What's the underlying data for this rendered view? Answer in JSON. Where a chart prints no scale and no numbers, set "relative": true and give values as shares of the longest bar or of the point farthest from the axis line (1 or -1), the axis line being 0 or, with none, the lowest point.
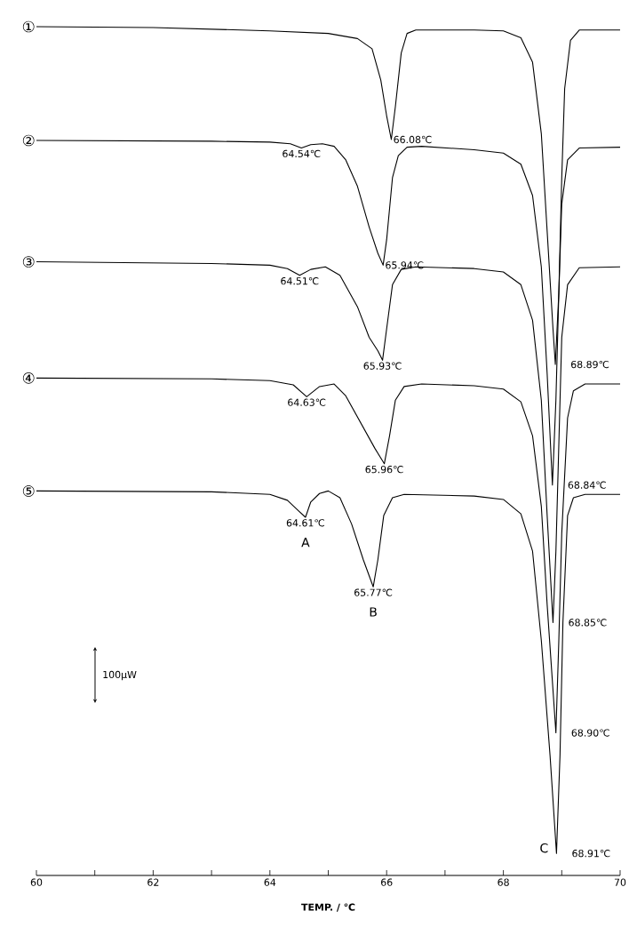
{
  "chart_data": {
    "type": "line",
    "relative": true,
    "xlabel": "TEMP.  / ℃",
    "xlim": [
      60,
      70
    ],
    "xticks": [
      60,
      {
        "value": 61,
        "label": null
      },
      62,
      {
        "value": 63,
        "label": null
      },
      64,
      {
        "value": 65,
        "label": null
      },
      66,
      {
        "value": 67,
        "label": null
      },
      68,
      {
        "value": 69,
        "label": null
      },
      70
    ],
    "series": [
      {
        "name": "①",
        "color": "#000000",
        "x": [
          60,
          62,
          64,
          65,
          65.5,
          65.75,
          65.9,
          66.0,
          66.08,
          66.15,
          66.25,
          66.35,
          66.5,
          67.5,
          68.0,
          68.3,
          68.5,
          68.65,
          68.75,
          68.85,
          68.89,
          68.95,
          69.0,
          69.05,
          69.15,
          69.3,
          70
        ],
        "values": [
          1.0,
          0.999,
          0.995,
          0.992,
          0.986,
          0.974,
          0.937,
          0.895,
          0.867,
          0.906,
          0.969,
          0.992,
          0.996,
          0.996,
          0.995,
          0.987,
          0.958,
          0.874,
          0.759,
          0.644,
          0.602,
          0.686,
          0.822,
          0.927,
          0.984,
          0.996,
          0.996
        ]
      },
      {
        "name": "②",
        "color": "#000000",
        "x": [
          60,
          63,
          64,
          64.35,
          64.54,
          64.7,
          64.9,
          65.1,
          65.3,
          65.5,
          65.7,
          65.85,
          65.94,
          66.0,
          66.1,
          66.2,
          66.35,
          66.6,
          67.5,
          68.0,
          68.3,
          68.5,
          68.65,
          68.75,
          68.84,
          68.9,
          68.95,
          69.0,
          69.1,
          69.3,
          70
        ],
        "values": [
          0.866,
          0.865,
          0.864,
          0.862,
          0.857,
          0.861,
          0.862,
          0.859,
          0.843,
          0.812,
          0.764,
          0.733,
          0.719,
          0.749,
          0.822,
          0.848,
          0.858,
          0.859,
          0.855,
          0.851,
          0.838,
          0.801,
          0.717,
          0.591,
          0.46,
          0.56,
          0.686,
          0.791,
          0.843,
          0.857,
          0.858
        ]
      },
      {
        "name": "③",
        "color": "#000000",
        "x": [
          60,
          63,
          64,
          64.3,
          64.51,
          64.7,
          64.95,
          65.2,
          65.5,
          65.7,
          65.85,
          65.93,
          66.0,
          66.1,
          66.25,
          66.5,
          67.5,
          68.0,
          68.3,
          68.5,
          68.65,
          68.75,
          68.85,
          68.9,
          68.95,
          69.0,
          69.1,
          69.3,
          70
        ],
        "values": [
          0.723,
          0.721,
          0.719,
          0.715,
          0.707,
          0.714,
          0.717,
          0.707,
          0.67,
          0.634,
          0.618,
          0.607,
          0.644,
          0.696,
          0.714,
          0.717,
          0.715,
          0.711,
          0.696,
          0.654,
          0.56,
          0.424,
          0.298,
          0.382,
          0.508,
          0.634,
          0.696,
          0.716,
          0.717
        ]
      },
      {
        "name": "④",
        "color": "#000000",
        "x": [
          60,
          63,
          64,
          64.4,
          64.63,
          64.85,
          65.1,
          65.3,
          65.55,
          65.8,
          65.96,
          66.05,
          66.15,
          66.3,
          66.6,
          67.5,
          68.0,
          68.3,
          68.5,
          68.65,
          68.75,
          68.9,
          68.95,
          69.0,
          69.1,
          69.2,
          69.4,
          70
        ],
        "values": [
          0.586,
          0.585,
          0.583,
          0.578,
          0.564,
          0.576,
          0.579,
          0.565,
          0.534,
          0.503,
          0.485,
          0.518,
          0.56,
          0.576,
          0.579,
          0.577,
          0.573,
          0.558,
          0.518,
          0.435,
          0.319,
          0.168,
          0.277,
          0.403,
          0.539,
          0.571,
          0.579,
          0.579
        ]
      },
      {
        "name": "⑤",
        "color": "#000000",
        "x": [
          60,
          63,
          64,
          64.3,
          64.5,
          64.61,
          64.7,
          64.85,
          65.0,
          65.2,
          65.4,
          65.6,
          65.77,
          65.85,
          65.95,
          66.1,
          66.3,
          67.5,
          68.0,
          68.3,
          68.5,
          68.65,
          68.8,
          68.91,
          68.97,
          69.02,
          69.1,
          69.2,
          69.4,
          70
        ],
        "values": [
          0.453,
          0.452,
          0.449,
          0.442,
          0.429,
          0.422,
          0.44,
          0.45,
          0.453,
          0.445,
          0.414,
          0.372,
          0.34,
          0.372,
          0.424,
          0.445,
          0.449,
          0.447,
          0.443,
          0.426,
          0.382,
          0.277,
          0.141,
          0.026,
          0.141,
          0.298,
          0.424,
          0.445,
          0.449,
          0.449
        ]
      }
    ],
    "annotations": [
      {
        "text": "66.08℃",
        "x": 66.08,
        "y": 0.867
      },
      {
        "text": "68.89℃",
        "x": 68.89,
        "y": 0.602
      },
      {
        "text": "64.54℃",
        "x": 64.54,
        "y": 0.857
      },
      {
        "text": "65.94℃",
        "x": 65.94,
        "y": 0.719
      },
      {
        "text": "68.84℃",
        "x": 68.84,
        "y": 0.46
      },
      {
        "text": "64.51℃",
        "x": 64.51,
        "y": 0.707
      },
      {
        "text": "65.93℃",
        "x": 65.93,
        "y": 0.607
      },
      {
        "text": "68.85℃",
        "x": 68.85,
        "y": 0.298
      },
      {
        "text": "64.63℃",
        "x": 64.63,
        "y": 0.564
      },
      {
        "text": "65.96℃",
        "x": 65.96,
        "y": 0.485
      },
      {
        "text": "68.90℃",
        "x": 68.9,
        "y": 0.168
      },
      {
        "text": "64.61℃",
        "x": 64.61,
        "y": 0.422
      },
      {
        "text": "65.77℃",
        "x": 65.77,
        "y": 0.34
      },
      {
        "text": "68.91℃",
        "x": 68.91,
        "y": 0.026
      },
      {
        "text": "A",
        "x": 64.61,
        "y": 0.422
      },
      {
        "text": "B",
        "x": 65.77,
        "y": 0.34
      },
      {
        "text": "C",
        "x": 68.91,
        "y": 0.026
      },
      "100μW"
    ]
  }
}
